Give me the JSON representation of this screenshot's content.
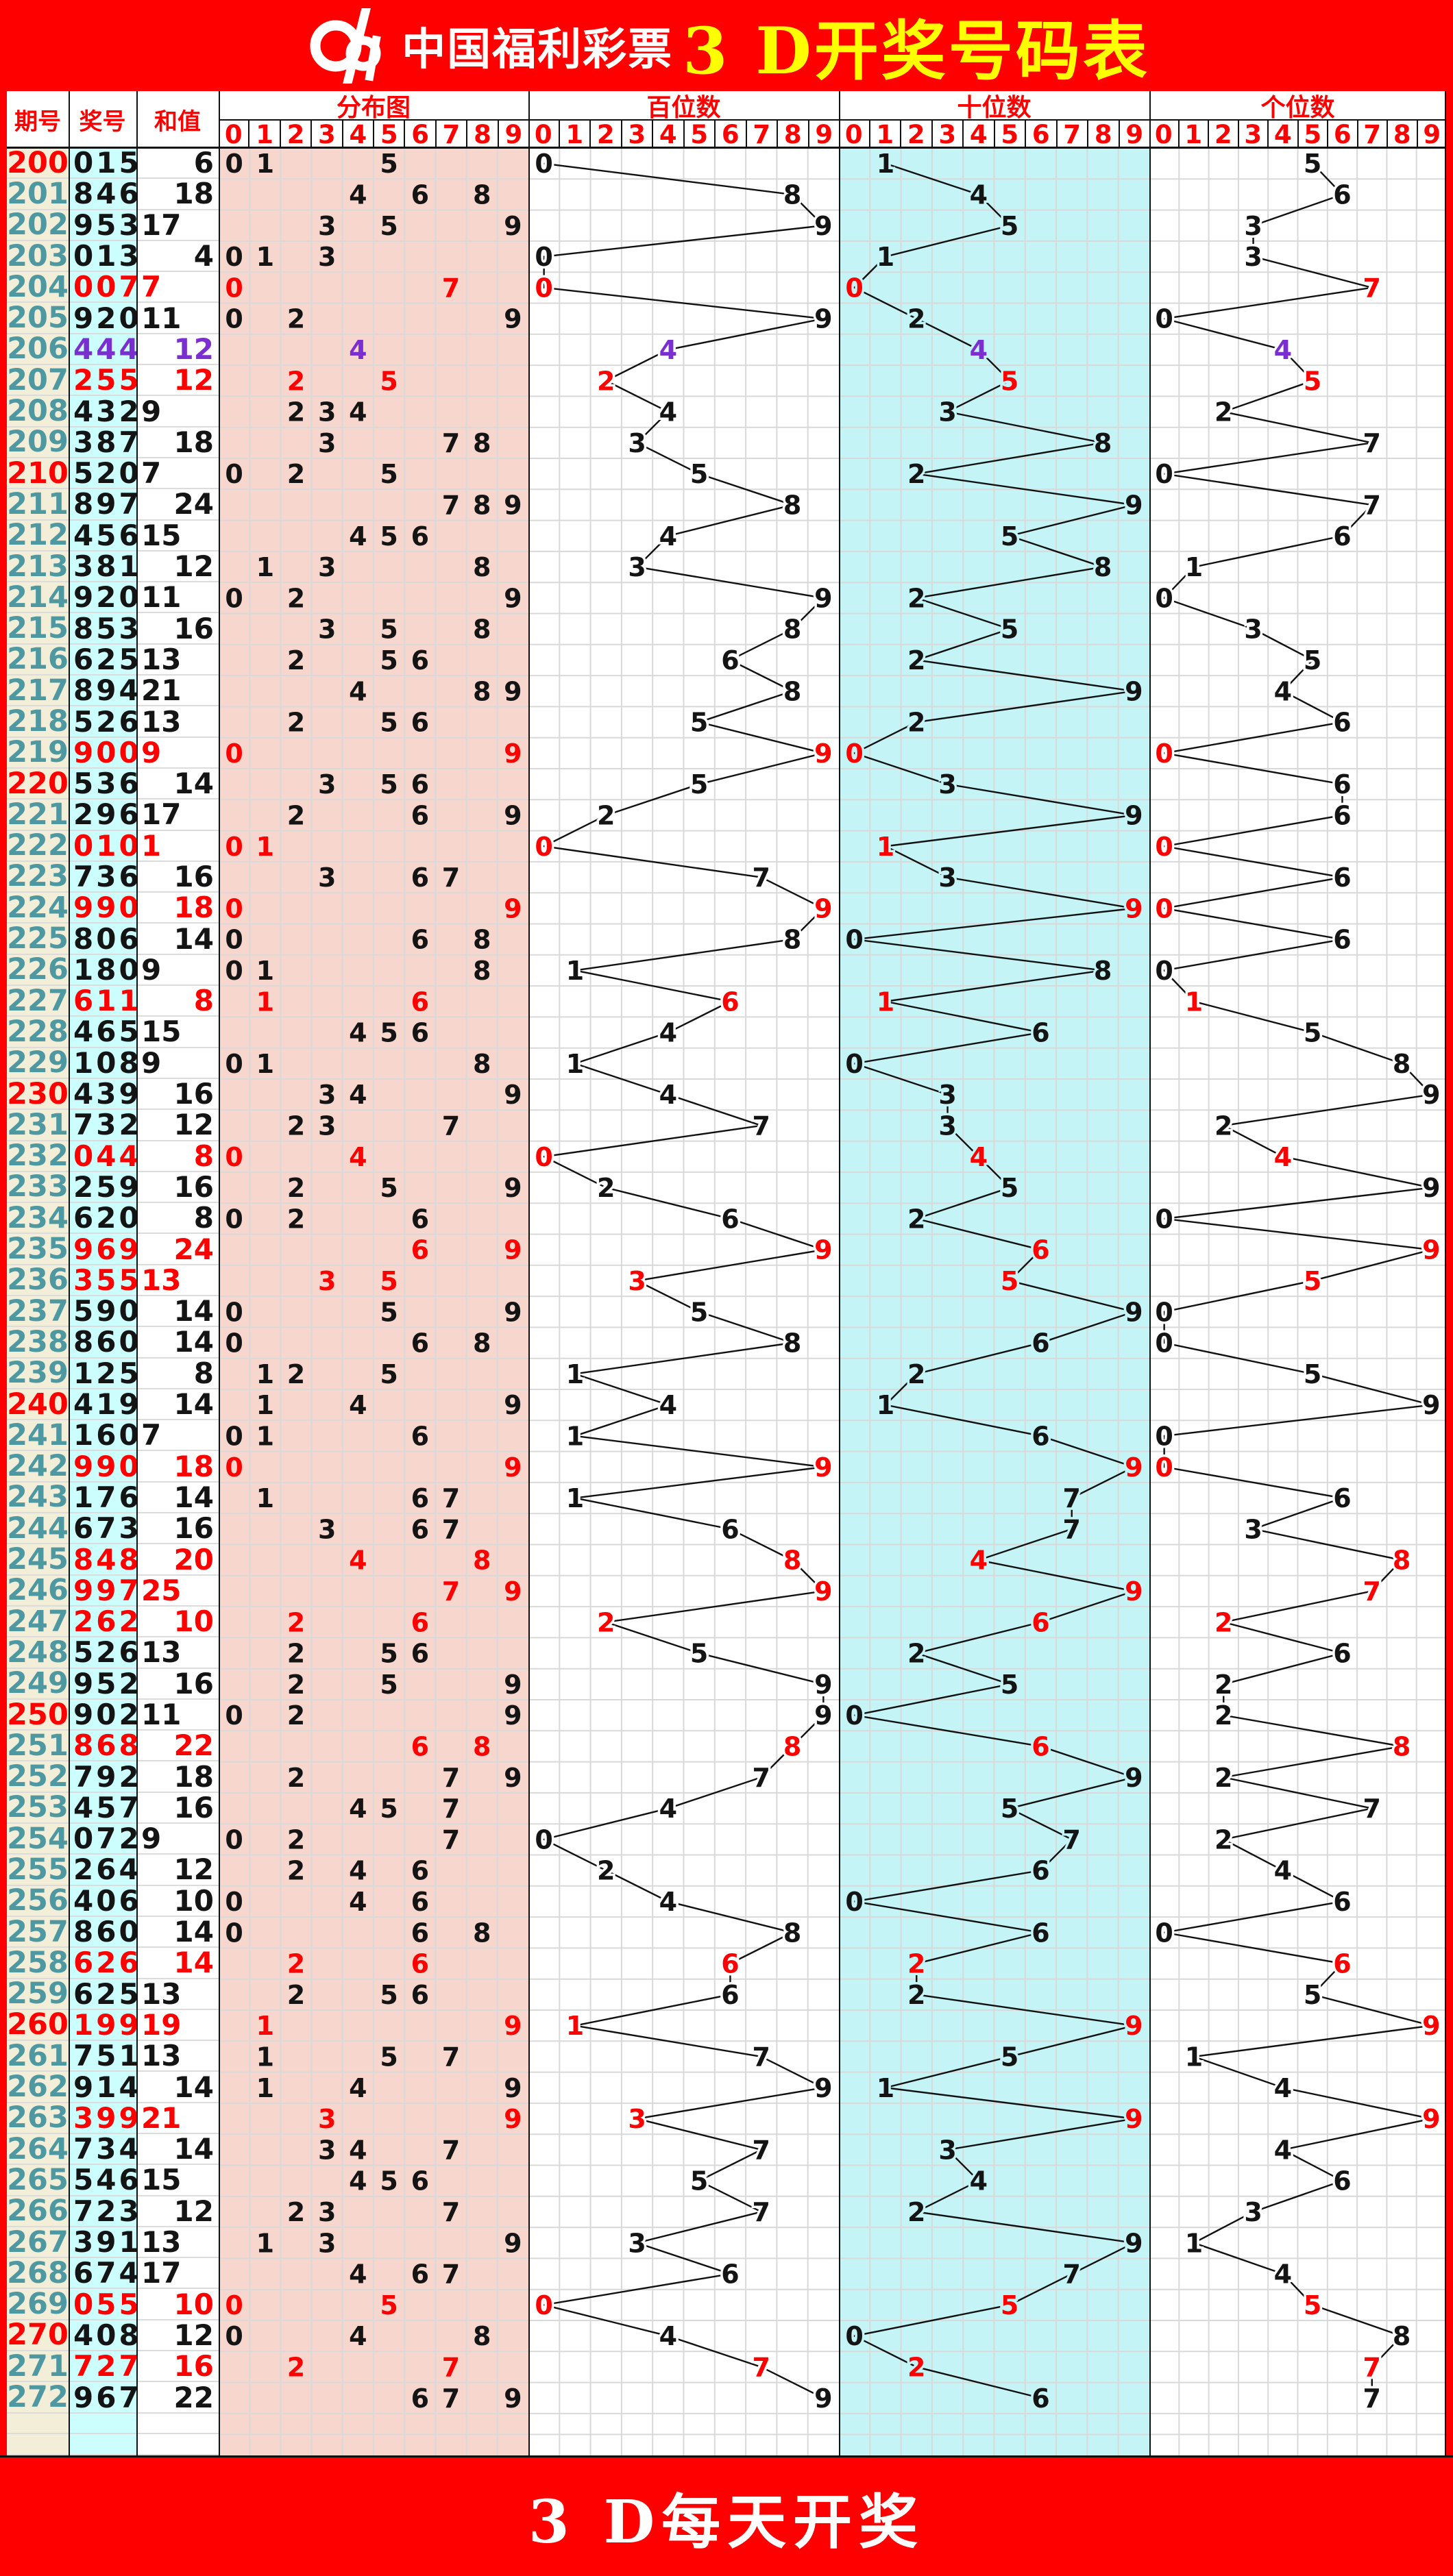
{
  "banner": {
    "logo_text": "中国福利彩票",
    "title": "3 D开奖号码表"
  },
  "footer": {
    "text": "3 D每天开奖"
  },
  "table_header": {
    "period": "期号",
    "number": "奖号",
    "sum": "和值",
    "groups": [
      "分布图",
      "百位数",
      "十位数",
      "个位数"
    ],
    "digits": [
      "0",
      "1",
      "2",
      "3",
      "4",
      "5",
      "6",
      "7",
      "8",
      "9"
    ]
  },
  "colors": {
    "banner_red": "#FF0000",
    "title_yellow": "#FFFF00",
    "plain": "#141414",
    "pair_red": "#FF0000",
    "triple_purple": "#7C2FD0",
    "period_teal": "#4E98A2",
    "period_red": "#FF0000",
    "cream": "#F3EED7",
    "prize_cyan": "#CCFEFE",
    "tens_cyan": "#C5F4F6",
    "dist_pink": "#F7D6CD",
    "panel_white": "#FFFFFF",
    "grid": "#D9D9D9"
  },
  "chart_data": {
    "type": "table",
    "title": "3 D开奖号码表",
    "columns": [
      "期号",
      "奖号",
      "和值",
      "分布图 0-9",
      "百位数 0-9",
      "十位数 0-9",
      "个位数 0-9"
    ],
    "notes": "分布图 prints the unique digits of 奖号 in columns 0-9; 百位数/十位数/个位数 plot the 1st/2nd/3rd digit as a connected zigzag line; numbers with a repeated digit are red, triples purple, every 10th 期号 red; odd 和值 left-aligned, even right-aligned",
    "rows": [
      [
        200,
        "015",
        6
      ],
      [
        201,
        "846",
        18
      ],
      [
        202,
        "953",
        17
      ],
      [
        203,
        "013",
        4
      ],
      [
        204,
        "007",
        7
      ],
      [
        205,
        "920",
        11
      ],
      [
        206,
        "444",
        12
      ],
      [
        207,
        "255",
        12
      ],
      [
        208,
        "432",
        9
      ],
      [
        209,
        "387",
        18
      ],
      [
        210,
        "520",
        7
      ],
      [
        211,
        "897",
        24
      ],
      [
        212,
        "456",
        15
      ],
      [
        213,
        "381",
        12
      ],
      [
        214,
        "920",
        11
      ],
      [
        215,
        "853",
        16
      ],
      [
        216,
        "625",
        13
      ],
      [
        217,
        "894",
        21
      ],
      [
        218,
        "526",
        13
      ],
      [
        219,
        "900",
        9
      ],
      [
        220,
        "536",
        14
      ],
      [
        221,
        "296",
        17
      ],
      [
        222,
        "010",
        1
      ],
      [
        223,
        "736",
        16
      ],
      [
        224,
        "990",
        18
      ],
      [
        225,
        "806",
        14
      ],
      [
        226,
        "180",
        9
      ],
      [
        227,
        "611",
        8
      ],
      [
        228,
        "465",
        15
      ],
      [
        229,
        "108",
        9
      ],
      [
        230,
        "439",
        16
      ],
      [
        231,
        "732",
        12
      ],
      [
        232,
        "044",
        8
      ],
      [
        233,
        "259",
        16
      ],
      [
        234,
        "620",
        8
      ],
      [
        235,
        "969",
        24
      ],
      [
        236,
        "355",
        13
      ],
      [
        237,
        "590",
        14
      ],
      [
        238,
        "860",
        14
      ],
      [
        239,
        "125",
        8
      ],
      [
        240,
        "419",
        14
      ],
      [
        241,
        "160",
        7
      ],
      [
        242,
        "990",
        18
      ],
      [
        243,
        "176",
        14
      ],
      [
        244,
        "673",
        16
      ],
      [
        245,
        "848",
        20
      ],
      [
        246,
        "997",
        25
      ],
      [
        247,
        "262",
        10
      ],
      [
        248,
        "526",
        13
      ],
      [
        249,
        "952",
        16
      ],
      [
        250,
        "902",
        11
      ],
      [
        251,
        "868",
        22
      ],
      [
        252,
        "792",
        18
      ],
      [
        253,
        "457",
        16
      ],
      [
        254,
        "072",
        9
      ],
      [
        255,
        "264",
        12
      ],
      [
        256,
        "406",
        10
      ],
      [
        257,
        "860",
        14
      ],
      [
        258,
        "626",
        14
      ],
      [
        259,
        "625",
        13
      ],
      [
        260,
        "199",
        19
      ],
      [
        261,
        "751",
        13
      ],
      [
        262,
        "914",
        14
      ],
      [
        263,
        "399",
        21
      ],
      [
        264,
        "734",
        14
      ],
      [
        265,
        "546",
        15
      ],
      [
        266,
        "723",
        12
      ],
      [
        267,
        "391",
        13
      ],
      [
        268,
        "674",
        17
      ],
      [
        269,
        "055",
        10
      ],
      [
        270,
        "408",
        12
      ],
      [
        271,
        "727",
        16
      ],
      [
        272,
        "967",
        22
      ]
    ]
  }
}
